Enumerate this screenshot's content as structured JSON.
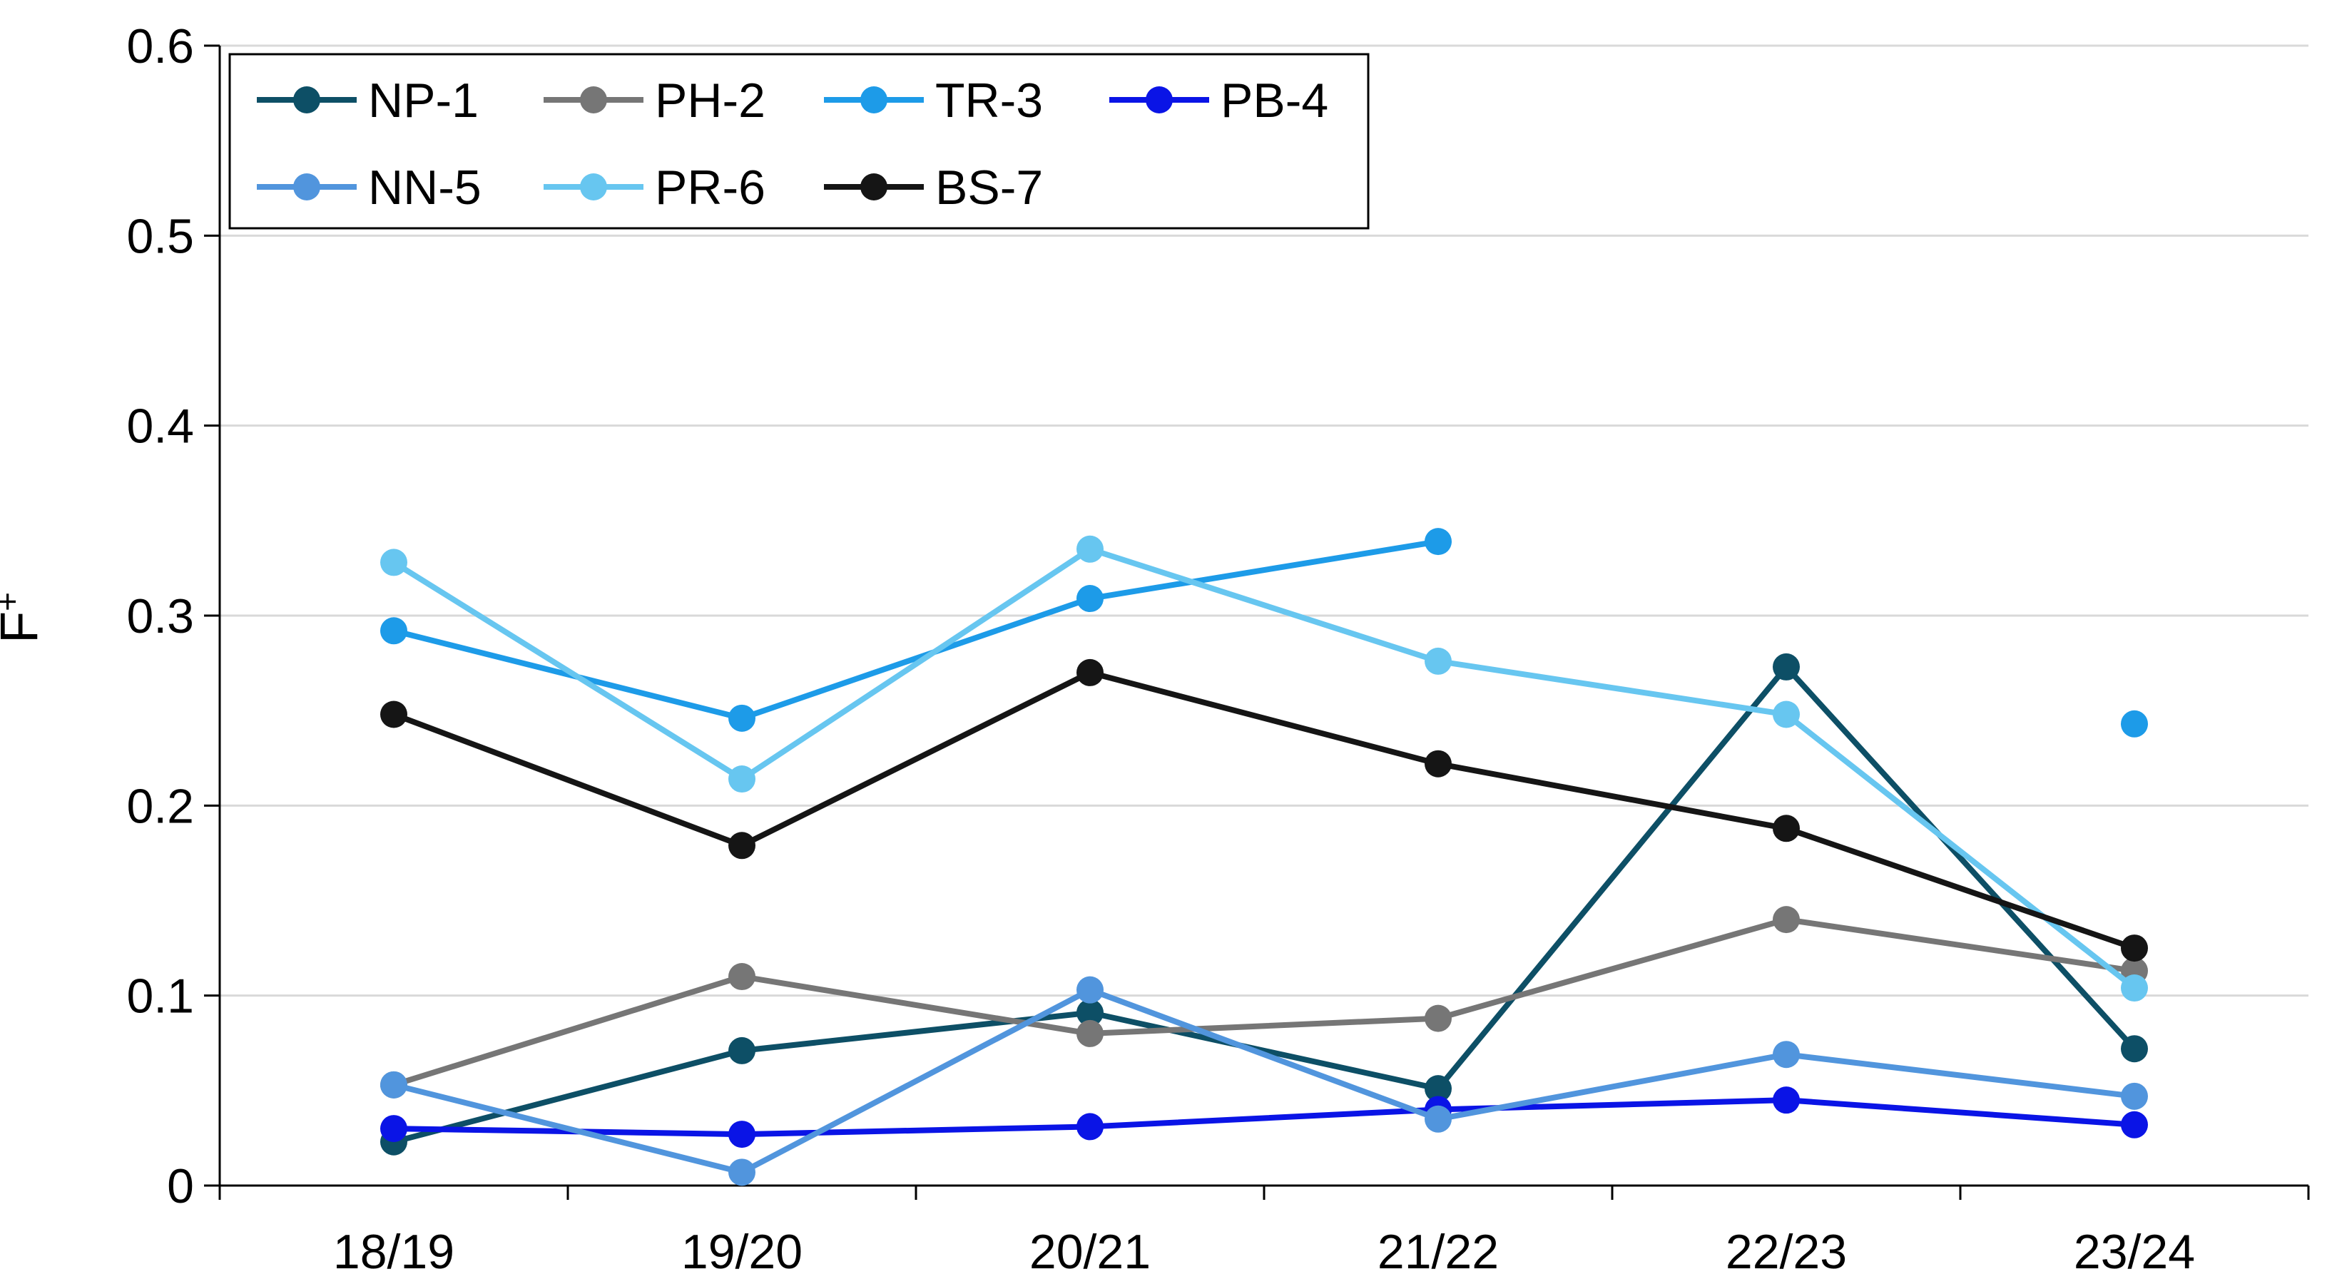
{
  "chart_data": {
    "type": "line",
    "title": "",
    "xlabel": "",
    "ylabel": "F",
    "ylabel_superscript": "+",
    "categories": [
      "18/19",
      "19/20",
      "20/21",
      "21/22",
      "22/23",
      "23/24"
    ],
    "ylim": [
      0,
      0.6
    ],
    "yticks": [
      0,
      0.1,
      0.2,
      0.3,
      0.4,
      0.5,
      0.6
    ],
    "ytick_labels": [
      "0",
      "0.1",
      "0.2",
      "0.3",
      "0.4",
      "0.5",
      "0.6"
    ],
    "grid": true,
    "legend_position": "top-left",
    "series": [
      {
        "name": "NP-1",
        "color": "#0d4f66",
        "values": [
          0.023,
          0.071,
          0.091,
          0.051,
          0.273,
          0.072
        ]
      },
      {
        "name": "PH-2",
        "color": "#767676",
        "values": [
          0.053,
          0.11,
          0.08,
          0.088,
          0.14,
          0.113
        ]
      },
      {
        "name": "TR-3",
        "color": "#1d9be8",
        "values": [
          0.292,
          0.246,
          0.309,
          0.339,
          null,
          0.243
        ]
      },
      {
        "name": "PB-4",
        "color": "#0a14e6",
        "values": [
          0.03,
          0.027,
          0.031,
          0.04,
          0.045,
          0.032
        ]
      },
      {
        "name": "NN-5",
        "color": "#5195dd",
        "values": [
          0.053,
          0.007,
          0.103,
          0.035,
          0.069,
          0.047
        ]
      },
      {
        "name": "PR-6",
        "color": "#67c6f0",
        "values": [
          0.328,
          0.214,
          0.335,
          0.276,
          0.248,
          0.104
        ]
      },
      {
        "name": "BS-7",
        "color": "#151515",
        "values": [
          0.248,
          0.179,
          0.27,
          0.222,
          0.188,
          0.125
        ]
      }
    ]
  }
}
